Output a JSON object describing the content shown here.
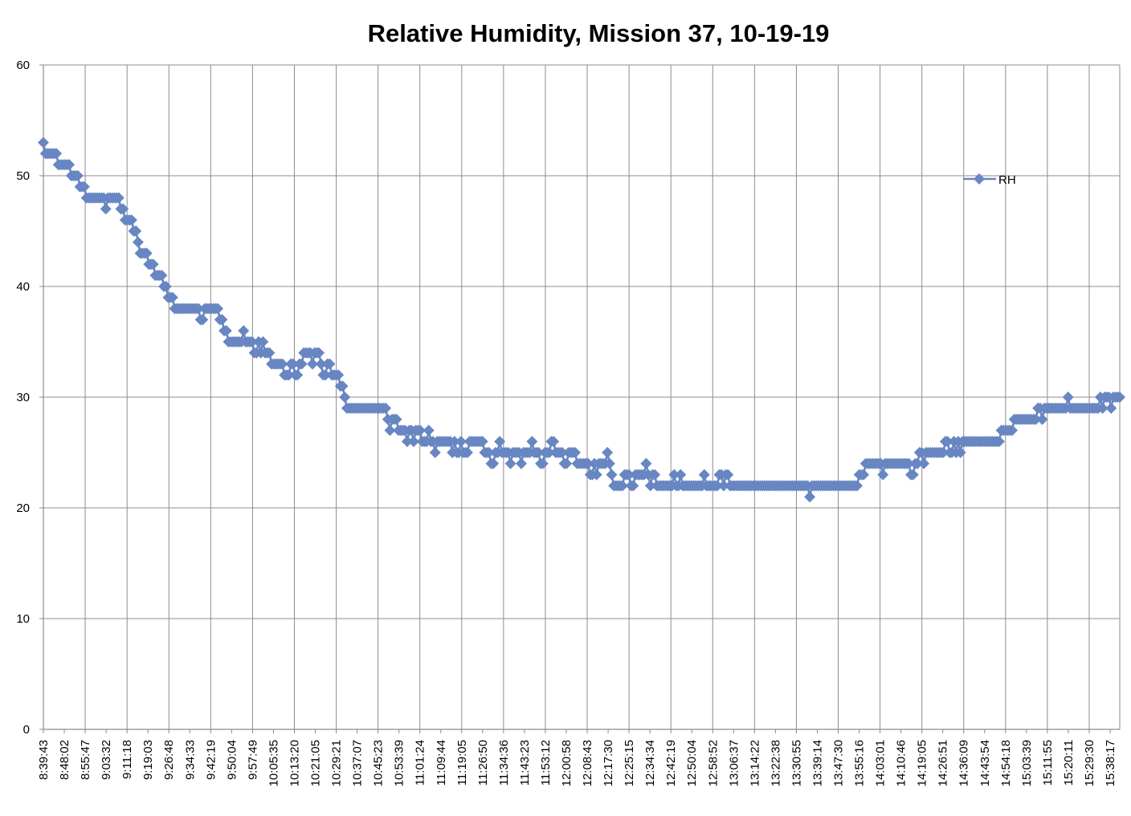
{
  "chart_data": {
    "type": "line",
    "title": "Relative Humidity, Mission 37, 10-19-19",
    "xlabel": "",
    "ylabel": "",
    "ylim": [
      0,
      60
    ],
    "y_ticks": [
      0,
      10,
      20,
      30,
      40,
      50,
      60
    ],
    "x_tick_labels": [
      "8:39:43",
      "8:48:02",
      "8:55:47",
      "9:03:32",
      "9:11:18",
      "9:19:03",
      "9:26:48",
      "9:34:33",
      "9:42:19",
      "9:50:04",
      "9:57:49",
      "10:05:35",
      "10:13:20",
      "10:21:05",
      "10:29:21",
      "10:37:07",
      "10:45:23",
      "10:53:39",
      "11:01:24",
      "11:09:44",
      "11:19:05",
      "11:26:50",
      "11:34:36",
      "11:43:23",
      "11:53:12",
      "12:00:58",
      "12:08:43",
      "12:17:30",
      "12:25:15",
      "12:34:34",
      "12:42:19",
      "12:50:04",
      "12:58:52",
      "13:06:37",
      "13:14:22",
      "13:22:38",
      "13:30:55",
      "13:39:14",
      "13:47:30",
      "13:55:16",
      "14:03:01",
      "14:10:46",
      "14:19:05",
      "14:26:51",
      "14:36:09",
      "14:43:54",
      "14:54:18",
      "15:03:39",
      "15:11:55",
      "15:20:11",
      "15:29:30",
      "15:38:17"
    ],
    "grid": true,
    "legend": {
      "position": "right",
      "entries": [
        "RH"
      ]
    },
    "colors": {
      "series": "#6886c2",
      "grid": "#8c8c8c",
      "axis": "#8c8c8c"
    },
    "series": [
      {
        "name": "RH",
        "marker": "diamond",
        "values": [
          53,
          52,
          52,
          52,
          52,
          52,
          52,
          51,
          51,
          51,
          51,
          51,
          51,
          50,
          50,
          50,
          50,
          49,
          49,
          49,
          48,
          48,
          48,
          48,
          48,
          48,
          48,
          48,
          48,
          47,
          48,
          48,
          48,
          48,
          48,
          48,
          47,
          47,
          46,
          46,
          46,
          46,
          45,
          45,
          44,
          43,
          43,
          43,
          43,
          42,
          42,
          42,
          41,
          41,
          41,
          41,
          40,
          40,
          39,
          39,
          39,
          38,
          38,
          38,
          38,
          38,
          38,
          38,
          38,
          38,
          38,
          38,
          38,
          37,
          37,
          38,
          38,
          38,
          38,
          38,
          38,
          38,
          37,
          37,
          36,
          36,
          35,
          35,
          35,
          35,
          35,
          35,
          35,
          36,
          35,
          35,
          35,
          35,
          34,
          34,
          35,
          34,
          35,
          34,
          34,
          34,
          33,
          33,
          33,
          33,
          33,
          33,
          32,
          32,
          32,
          33,
          33,
          32,
          32,
          33,
          33,
          34,
          34,
          34,
          34,
          33,
          34,
          34,
          34,
          33,
          32,
          32,
          33,
          33,
          32,
          32,
          32,
          32,
          31,
          31,
          30,
          29,
          29,
          29,
          29,
          29,
          29,
          29,
          29,
          29,
          29,
          29,
          29,
          29,
          29,
          29,
          29,
          29,
          29,
          29,
          28,
          27,
          28,
          28,
          28,
          27,
          27,
          27,
          27,
          26,
          27,
          27,
          26,
          27,
          27,
          27,
          26,
          26,
          26,
          27,
          26,
          26,
          25,
          26,
          26,
          26,
          26,
          26,
          26,
          26,
          25,
          26,
          25,
          25,
          26,
          25,
          25,
          25,
          26,
          26,
          26,
          26,
          26,
          26,
          26,
          25,
          25,
          25,
          24,
          24,
          25,
          25,
          26,
          25,
          25,
          25,
          25,
          24,
          25,
          25,
          25,
          25,
          24,
          25,
          25,
          25,
          25,
          26,
          25,
          25,
          25,
          24,
          24,
          25,
          25,
          25,
          26,
          26,
          25,
          25,
          25,
          25,
          24,
          24,
          25,
          25,
          25,
          25,
          24,
          24,
          24,
          24,
          24,
          24,
          23,
          23,
          24,
          23,
          24,
          24,
          24,
          24,
          25,
          24,
          23,
          22,
          22,
          22,
          22,
          22,
          23,
          23,
          23,
          22,
          22,
          23,
          23,
          23,
          23,
          23,
          24,
          23,
          22,
          23,
          23,
          22,
          22,
          22,
          22,
          22,
          22,
          22,
          22,
          23,
          22,
          22,
          23,
          22,
          22,
          22,
          22,
          22,
          22,
          22,
          22,
          22,
          22,
          23,
          22,
          22,
          22,
          22,
          22,
          22,
          23,
          23,
          22,
          23,
          23,
          22,
          22,
          22,
          22,
          22,
          22,
          22,
          22,
          22,
          22,
          22,
          22,
          22,
          22,
          22,
          22,
          22,
          22,
          22,
          22,
          22,
          22,
          22,
          22,
          22,
          22,
          22,
          22,
          22,
          22,
          22,
          22,
          22,
          22,
          22,
          22,
          22,
          21,
          22,
          22,
          22,
          22,
          22,
          22,
          22,
          22,
          22,
          22,
          22,
          22,
          22,
          22,
          22,
          22,
          22,
          22,
          22,
          22,
          22,
          22,
          23,
          23,
          23,
          24,
          24,
          24,
          24,
          24,
          24,
          24,
          24,
          23,
          24,
          24,
          24,
          24,
          24,
          24,
          24,
          24,
          24,
          24,
          24,
          24,
          23,
          23,
          24,
          24,
          25,
          25,
          24,
          25,
          25,
          25,
          25,
          25,
          25,
          25,
          25,
          25,
          26,
          26,
          25,
          25,
          26,
          25,
          26,
          25,
          26,
          26,
          26,
          26,
          26,
          26,
          26,
          26,
          26,
          26,
          26,
          26,
          26,
          26,
          26,
          26,
          26,
          26,
          27,
          27,
          27,
          27,
          27,
          27,
          28,
          28,
          28,
          28,
          28,
          28,
          28,
          28,
          28,
          28,
          28,
          29,
          29,
          28,
          29,
          29,
          29,
          29,
          29,
          29,
          29,
          29,
          29,
          29,
          29,
          30,
          29,
          29,
          29,
          29,
          29,
          29,
          29,
          29,
          29,
          29,
          29,
          29,
          29,
          29,
          30,
          29,
          30,
          30,
          30,
          29,
          30,
          30,
          30,
          30
        ]
      }
    ]
  }
}
